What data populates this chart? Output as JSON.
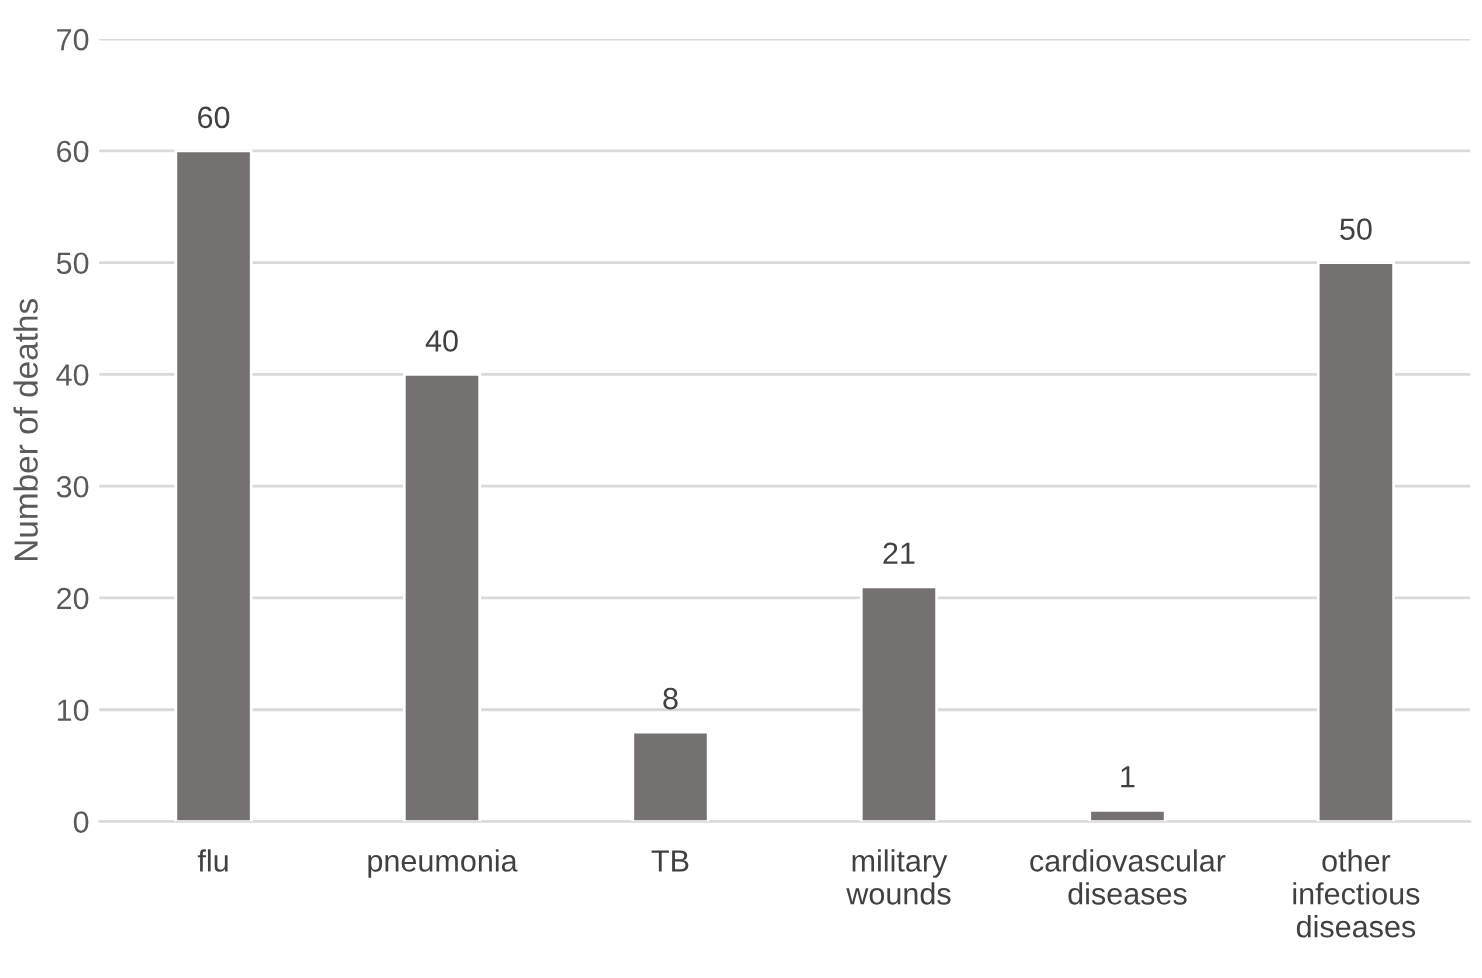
{
  "chart_data": {
    "type": "bar",
    "ylabel": "Number of deaths",
    "categories": [
      "flu",
      "pneumonia",
      "TB",
      "military wounds",
      "cardiovascular diseases",
      "other infectious diseases"
    ],
    "values": [
      60,
      40,
      8,
      21,
      1,
      50
    ],
    "color": "#767171",
    "ylim": [
      0,
      70
    ],
    "yticks": [
      0,
      10,
      20,
      30,
      40,
      50,
      60,
      70
    ],
    "grid": "y",
    "data_labels": true
  }
}
